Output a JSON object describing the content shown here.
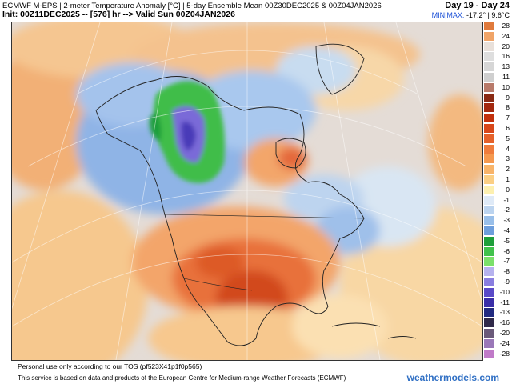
{
  "header": {
    "line1": "ECMWF M-EPS | 2-meter Temperature Anomaly [°C] | 5-day Ensemble Mean 00Z30DEC2025 & 00Z04JAN2026",
    "line2": "Init: 00Z11DEC2025 -- [576] hr --> Valid Sun 00Z04JAN2026",
    "day_range": "Day 19 - Day 24",
    "minmax_label": "MIN|MAX:",
    "minmax_value": "-17.2° | 9.6°C"
  },
  "colorbar": {
    "labels": [
      "28",
      "24",
      "20",
      "16",
      "13",
      "11",
      "10",
      "9",
      "8",
      "7",
      "6",
      "5",
      "4",
      "3",
      "2",
      "1",
      "0",
      "-1",
      "-2",
      "-3",
      "-4",
      "-5",
      "-6",
      "-7",
      "-8",
      "-9",
      "-10",
      "-11",
      "-13",
      "-16",
      "-20",
      "-24",
      "-28"
    ],
    "colors": [
      "#e07a3c",
      "#f0a468",
      "#e8e0da",
      "#dedede",
      "#d6d6d6",
      "#cfcfcf",
      "#b87a6a",
      "#8a2a14",
      "#a3280e",
      "#c2300c",
      "#d8471a",
      "#e5612a",
      "#ef7c3c",
      "#f5994f",
      "#f8b46a",
      "#fbcf85",
      "#fdf0b0",
      "#dfeaf7",
      "#bcd4ef",
      "#99bfe9",
      "#6e9edc",
      "#1e9f3a",
      "#41c24c",
      "#7be06a",
      "#b6b2ee",
      "#8a7ee0",
      "#5a4ac8",
      "#3a2ea8",
      "#222a80",
      "#302a4a",
      "#6a5a7a",
      "#9a78b8",
      "#c07ac8"
    ]
  },
  "footer": {
    "tos": "Personal use only according to our TOS (pf523X41p1f0p565)",
    "source": "This service is based on data and products of the European Centre for Medium-range Weather Forecasts (ECMWF)",
    "brand": "weathermodels.com"
  }
}
